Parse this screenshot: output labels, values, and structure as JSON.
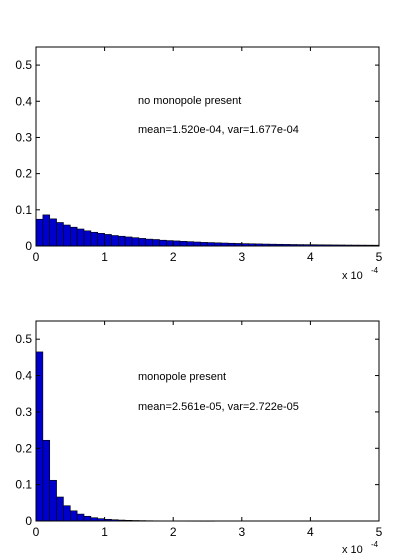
{
  "chart_data": [
    {
      "type": "bar",
      "title": "",
      "xlabel": "",
      "ylabel": "",
      "xlim": [
        0,
        5
      ],
      "ylim": [
        0,
        0.55
      ],
      "x_multiplier": "x 10",
      "x_multiplier_exponent": "-4",
      "xticks": [
        "0",
        "1",
        "2",
        "3",
        "4",
        "5"
      ],
      "yticks": [
        "0",
        "0.1",
        "0.2",
        "0.3",
        "0.4",
        "0.5"
      ],
      "annotations": [
        "no monopole present",
        "mean=1.520e-04, var=1.677e-04"
      ],
      "bar_color": "#0000cc",
      "bar_width": 0.1,
      "x": [
        0.05,
        0.15,
        0.25,
        0.35,
        0.45,
        0.55,
        0.65,
        0.75,
        0.85,
        0.95,
        1.05,
        1.15,
        1.25,
        1.35,
        1.45,
        1.55,
        1.65,
        1.75,
        1.85,
        1.95,
        2.05,
        2.15,
        2.25,
        2.35,
        2.45,
        2.55,
        2.65,
        2.75,
        2.85,
        2.95,
        3.05,
        3.15,
        3.25,
        3.35,
        3.45,
        3.55,
        3.65,
        3.75,
        3.85,
        3.95,
        4.05,
        4.15,
        4.25,
        4.35,
        4.45,
        4.55,
        4.65,
        4.75,
        4.85,
        4.95
      ],
      "values": [
        0.074,
        0.086,
        0.075,
        0.065,
        0.058,
        0.052,
        0.047,
        0.042,
        0.038,
        0.035,
        0.032,
        0.029,
        0.027,
        0.025,
        0.023,
        0.021,
        0.019,
        0.018,
        0.016,
        0.015,
        0.014,
        0.013,
        0.012,
        0.011,
        0.01,
        0.0095,
        0.0088,
        0.0082,
        0.0076,
        0.0071,
        0.0066,
        0.0062,
        0.0058,
        0.0054,
        0.0051,
        0.0048,
        0.0045,
        0.0042,
        0.004,
        0.0038,
        0.0036,
        0.0034,
        0.0032,
        0.003,
        0.0029,
        0.0027,
        0.0026,
        0.0025,
        0.0024,
        0.0023
      ]
    },
    {
      "type": "bar",
      "title": "",
      "xlabel": "",
      "ylabel": "",
      "xlim": [
        0,
        5
      ],
      "ylim": [
        0,
        0.55
      ],
      "x_multiplier": "x 10",
      "x_multiplier_exponent": "-4",
      "xticks": [
        "0",
        "1",
        "2",
        "3",
        "4",
        "5"
      ],
      "yticks": [
        "0",
        "0.1",
        "0.2",
        "0.3",
        "0.4",
        "0.5"
      ],
      "annotations": [
        "monopole present",
        "mean=2.561e-05, var=2.722e-05"
      ],
      "bar_color": "#0000cc",
      "bar_width": 0.1,
      "x": [
        0.05,
        0.15,
        0.25,
        0.35,
        0.45,
        0.55,
        0.65,
        0.75,
        0.85,
        0.95,
        1.05,
        1.15,
        1.25,
        1.35,
        1.45,
        1.55,
        1.65,
        1.75,
        1.85,
        1.95,
        2.05,
        2.15,
        2.25,
        2.35,
        2.45,
        2.55
      ],
      "values": [
        0.465,
        0.222,
        0.112,
        0.066,
        0.042,
        0.028,
        0.019,
        0.013,
        0.009,
        0.0065,
        0.0047,
        0.0035,
        0.0026,
        0.0019,
        0.0014,
        0.0011,
        0.0008,
        0.0006,
        0.0005,
        0.0004,
        0.0003,
        0.00025,
        0.0002,
        0.00015,
        0.0001,
        0.0001
      ]
    }
  ]
}
